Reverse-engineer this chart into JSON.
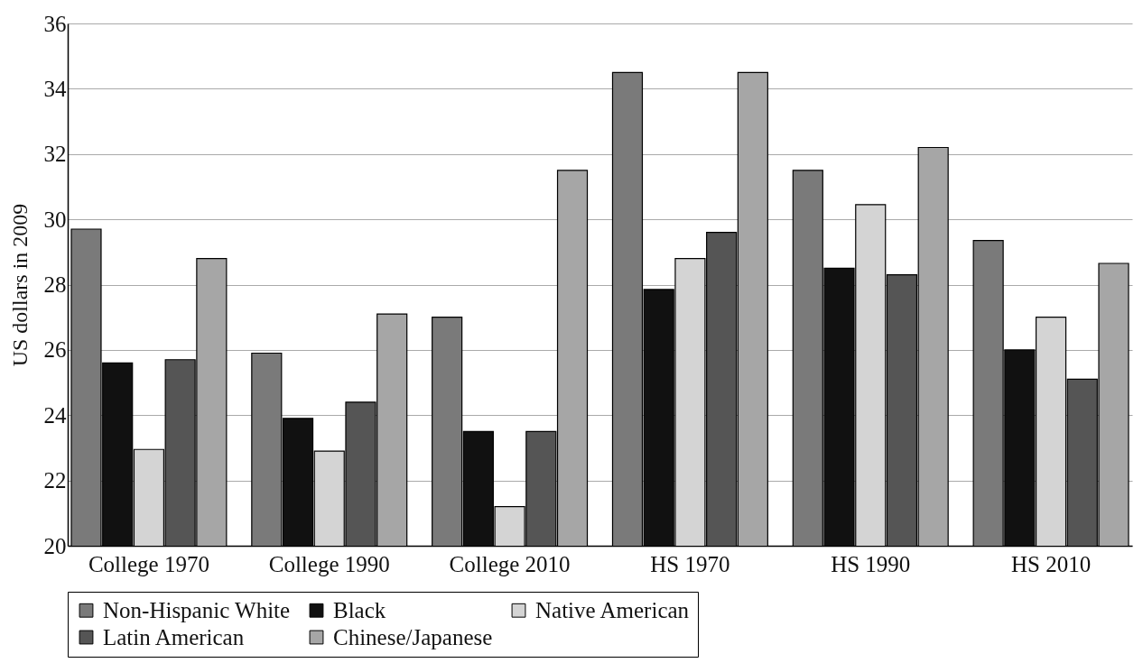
{
  "chart_data": {
    "type": "bar",
    "ylabel": "US dollars in 2009",
    "categories": [
      "College 1970",
      "College 1990",
      "College 2010",
      "HS 1970",
      "HS 1990",
      "HS 2010"
    ],
    "series": [
      {
        "name": "Non-Hispanic White",
        "color": "#7a7a7a",
        "values": [
          29.7,
          25.9,
          27.0,
          34.5,
          31.5,
          29.35
        ]
      },
      {
        "name": "Black",
        "color": "#111111",
        "values": [
          25.6,
          23.9,
          23.5,
          27.85,
          28.5,
          26.0
        ]
      },
      {
        "name": "Native American",
        "color": "#d4d4d4",
        "values": [
          22.95,
          22.9,
          21.2,
          28.8,
          30.45,
          27.0
        ]
      },
      {
        "name": "Latin American",
        "color": "#555555",
        "values": [
          25.7,
          24.4,
          23.5,
          29.6,
          28.3,
          25.1
        ]
      },
      {
        "name": "Chinese/Japanese",
        "color": "#a6a6a6",
        "values": [
          28.8,
          27.1,
          31.5,
          34.5,
          32.2,
          28.65
        ]
      }
    ],
    "ylim": [
      20,
      36
    ],
    "yticks": [
      20,
      22,
      24,
      26,
      28,
      30,
      32,
      34,
      36
    ],
    "grid": "y",
    "legend": "bottom"
  }
}
